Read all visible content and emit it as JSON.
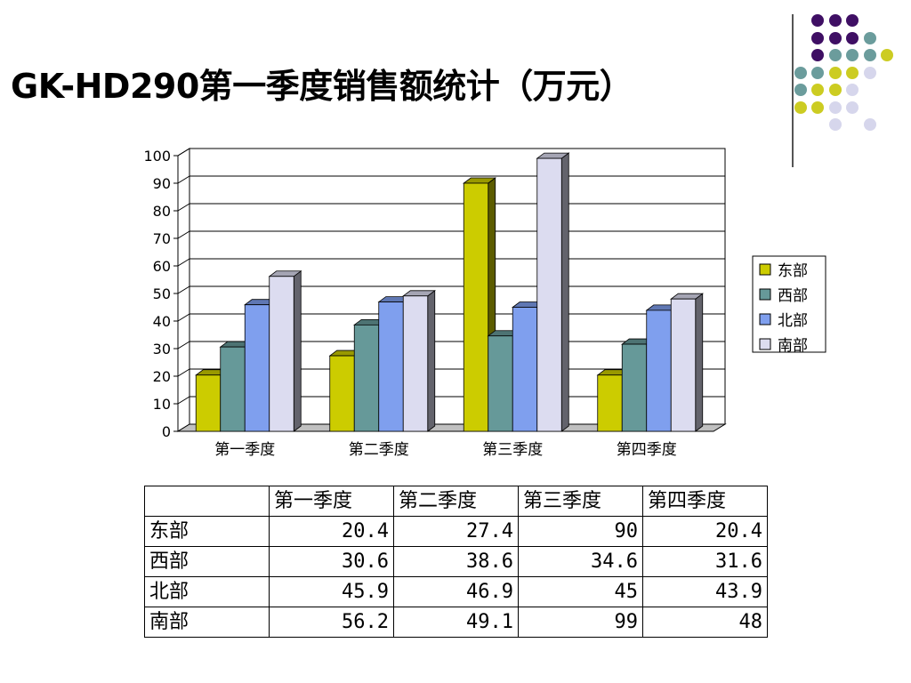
{
  "title": "GK-HD290第一季度销售额统计（万元）",
  "colors": {
    "series": [
      "#cccc00",
      "#669999",
      "#7f9fee",
      "#dcdcf0"
    ],
    "decor": [
      "#3f0f64",
      "#6b9c9c",
      "#cccc22",
      "#d6d6ec"
    ]
  },
  "chart_data": {
    "type": "bar",
    "categories": [
      "第一季度",
      "第二季度",
      "第三季度",
      "第四季度"
    ],
    "series": [
      {
        "name": "东部",
        "values": [
          20.4,
          27.4,
          90,
          20.4
        ]
      },
      {
        "name": "西部",
        "values": [
          30.6,
          38.6,
          34.6,
          31.6
        ]
      },
      {
        "name": "北部",
        "values": [
          45.9,
          46.9,
          45,
          43.9
        ]
      },
      {
        "name": "南部",
        "values": [
          56.2,
          49.1,
          99,
          48
        ]
      }
    ],
    "ylim": [
      0,
      100
    ],
    "yticks": [
      "0",
      "10",
      "20",
      "30",
      "40",
      "50",
      "60",
      "70",
      "80",
      "90",
      "100"
    ],
    "grid": true,
    "legend": "right",
    "style": "3d-clustered-column"
  },
  "table": {
    "headers": [
      "",
      "第一季度",
      "第二季度",
      "第三季度",
      "第四季度"
    ],
    "rows": [
      {
        "label": "东部",
        "values": [
          "20.4",
          "27.4",
          "90",
          "20.4"
        ]
      },
      {
        "label": "西部",
        "values": [
          "30.6",
          "38.6",
          "34.6",
          "31.6"
        ]
      },
      {
        "label": "北部",
        "values": [
          "45.9",
          "46.9",
          "45",
          "43.9"
        ]
      },
      {
        "label": "南部",
        "values": [
          "56.2",
          "49.1",
          "99",
          "48"
        ]
      }
    ]
  }
}
